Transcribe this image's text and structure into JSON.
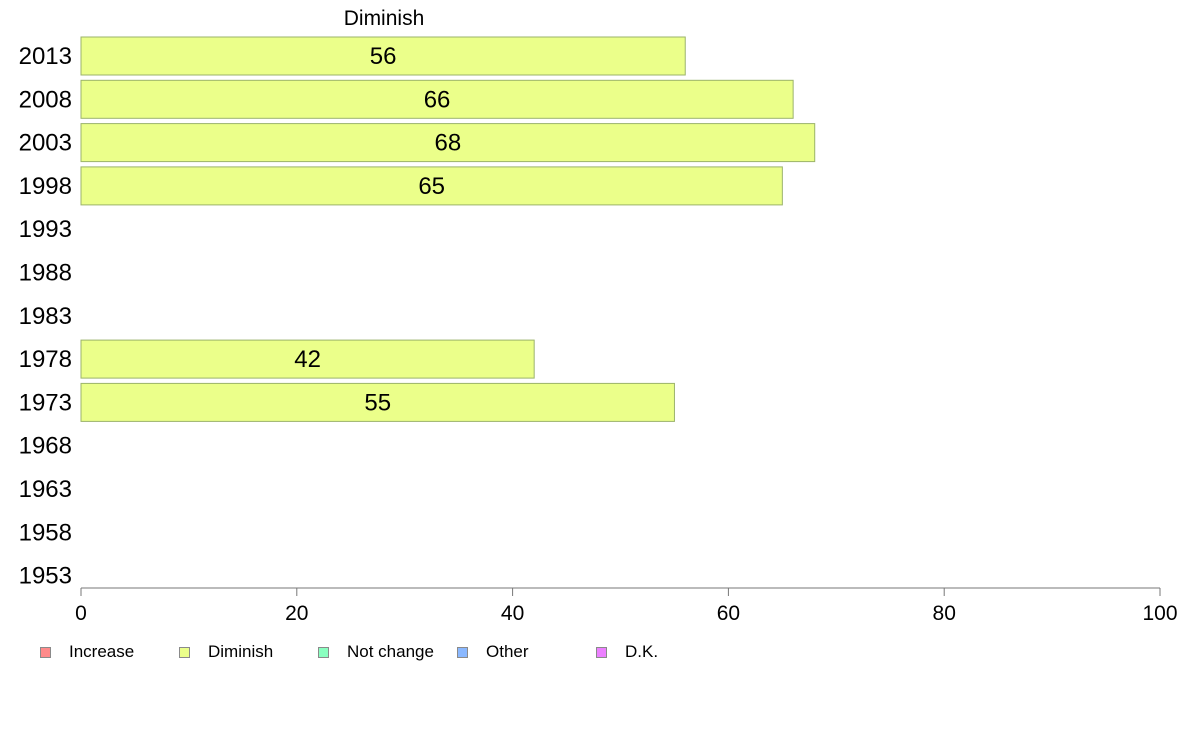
{
  "chart_data": {
    "type": "bar",
    "orientation": "horizontal",
    "title": "Diminish",
    "categories": [
      "2013",
      "2008",
      "2003",
      "1998",
      "1993",
      "1988",
      "1983",
      "1978",
      "1973",
      "1968",
      "1963",
      "1958",
      "1953"
    ],
    "series": [
      {
        "name": "Diminish",
        "color": "#ebff8a",
        "values": [
          56,
          66,
          68,
          65,
          null,
          null,
          null,
          42,
          55,
          null,
          null,
          null,
          null
        ]
      }
    ],
    "data_labels": [
      "56",
      "66",
      "68",
      "65",
      "",
      "",
      "",
      "42",
      "55",
      "",
      "",
      "",
      ""
    ],
    "xlim": [
      0,
      100
    ],
    "xticks": [
      0,
      20,
      40,
      60,
      80,
      100
    ],
    "grid": false,
    "legend": {
      "placement": "bottom-left",
      "items": [
        {
          "label": "Increase",
          "color": "#ff8a8a"
        },
        {
          "label": "Diminish",
          "color": "#ebff8a"
        },
        {
          "label": "Not change",
          "color": "#8affc0"
        },
        {
          "label": "Other",
          "color": "#8ab8ff"
        },
        {
          "label": "D.K.",
          "color": "#ec80ff"
        }
      ]
    }
  }
}
